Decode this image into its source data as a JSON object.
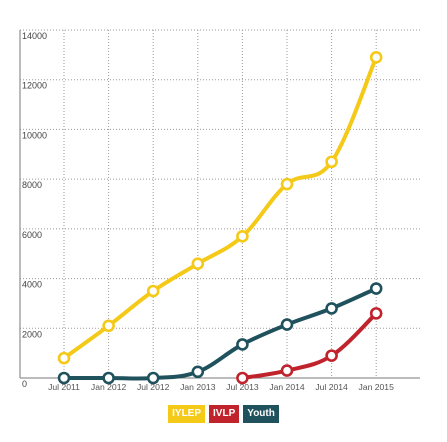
{
  "chart_data": {
    "type": "line",
    "x": [
      "Jul 2011",
      "Jan 2012",
      "Jul 2012",
      "Jan 2013",
      "Jul 2013",
      "Jan 2014",
      "Jul 2014",
      "Jan 2015"
    ],
    "yticks": [
      0,
      2000,
      4000,
      6000,
      8000,
      10000,
      12000,
      14000
    ],
    "ylim": [
      0,
      14000
    ],
    "grid": true,
    "legend_placement": "bottom",
    "series": [
      {
        "name": "IYLEP",
        "color": "#f5c918",
        "values": [
          800,
          2100,
          3500,
          4600,
          5700,
          7800,
          8700,
          12900
        ]
      },
      {
        "name": "IVLP",
        "color": "#c0232c",
        "values": [
          null,
          null,
          null,
          null,
          0,
          300,
          900,
          2600
        ]
      },
      {
        "name": "Youth",
        "color": "#20525e",
        "values": [
          0,
          0,
          0,
          250,
          1350,
          2150,
          2800,
          3600
        ]
      }
    ]
  }
}
